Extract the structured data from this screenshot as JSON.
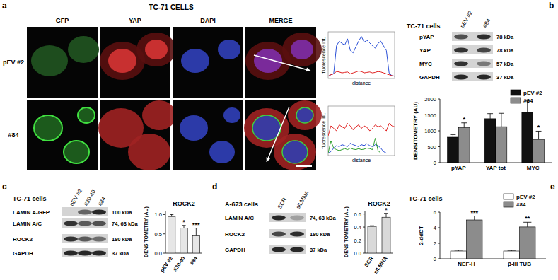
{
  "panel_labels": [
    "a",
    "b",
    "c",
    "d",
    "e"
  ],
  "micrographs": {
    "title": "TC-71 CELLS",
    "columns": [
      "GFP",
      "YAP",
      "DAPI",
      "MERGE"
    ],
    "rows": [
      "pEV #2",
      "#84"
    ]
  },
  "blots": [
    {
      "title": "TC-71 cells",
      "lanes": [
        "pEV #2",
        "#84"
      ],
      "bands": [
        {
          "label": "pYAP",
          "size": "78 kDa"
        },
        {
          "label": "YAP",
          "size": "78 kDa"
        },
        {
          "label": "MYC",
          "size": "57 kDa"
        },
        {
          "label": "GAPDH",
          "size": "37 kDa"
        }
      ]
    },
    {
      "title": "TC-71 cells",
      "lanes": [
        "pEV #2",
        "#30-40",
        "#84"
      ],
      "bands": [
        {
          "label": "LAMIN A-GFP",
          "size": "100 kDa"
        },
        {
          "label": "LAMIN A/C",
          "size": "74, 63 kDa"
        },
        {
          "label": "ROCK2",
          "size": "180 kDa"
        },
        {
          "label": "GAPDH",
          "size": "37 kDa"
        }
      ]
    },
    {
      "title": "A-673 cells",
      "lanes": [
        "SCR",
        "siLMNA"
      ],
      "bands": [
        {
          "label": "LAMIN A/C",
          "size": "74, 63 kDa"
        },
        {
          "label": "ROCK2",
          "size": "180 kDa"
        },
        {
          "label": "GAPDH",
          "size": "37 kDa"
        }
      ]
    }
  ],
  "chart_data": [
    {
      "type": "line",
      "xlabel": "distance",
      "ylabel": "fluorescence int.",
      "tick_labels": false,
      "x": [
        0,
        1,
        2,
        3,
        4,
        5,
        6,
        7,
        8,
        9,
        10,
        11,
        12,
        13,
        14,
        15,
        16,
        17,
        18,
        19,
        20,
        21,
        22,
        23,
        24
      ],
      "xlim": [
        0,
        24
      ],
      "ylim": [
        0,
        100
      ],
      "series": [
        {
          "color": "#2a4fd6",
          "values": [
            5,
            8,
            10,
            70,
            80,
            75,
            72,
            85,
            60,
            55,
            68,
            80,
            90,
            78,
            82,
            76,
            70,
            65,
            75,
            80,
            70,
            60,
            12,
            6,
            5
          ]
        },
        {
          "color": "#e02020",
          "values": [
            5,
            8,
            10,
            15,
            14,
            12,
            13,
            14,
            10,
            12,
            14,
            16,
            15,
            12,
            13,
            14,
            12,
            13,
            15,
            14,
            12,
            10,
            8,
            6,
            5
          ]
        }
      ]
    },
    {
      "type": "line",
      "xlabel": "distance",
      "ylabel": "fluorescence int.",
      "tick_labels": false,
      "x": [
        0,
        1,
        2,
        3,
        4,
        5,
        6,
        7,
        8,
        9,
        10,
        11,
        12,
        13,
        14,
        15,
        16,
        17,
        18,
        19,
        20,
        21,
        22,
        23,
        24
      ],
      "xlim": [
        0,
        24
      ],
      "ylim": [
        0,
        100
      ],
      "series": [
        {
          "color": "#e02020",
          "values": [
            40,
            60,
            55,
            50,
            62,
            58,
            55,
            65,
            60,
            52,
            58,
            62,
            55,
            60,
            57,
            50,
            55,
            62,
            58,
            60,
            55,
            50,
            65,
            60,
            58
          ]
        },
        {
          "color": "#2a4fd6",
          "values": [
            5,
            8,
            15,
            20,
            18,
            22,
            20,
            18,
            25,
            22,
            20,
            18,
            22,
            20,
            24,
            20,
            18,
            22,
            20,
            15,
            8,
            5,
            5,
            5,
            5
          ]
        },
        {
          "color": "#2ea02e",
          "values": [
            5,
            30,
            15,
            12,
            10,
            12,
            14,
            12,
            15,
            13,
            12,
            14,
            12,
            13,
            15,
            14,
            12,
            35,
            10,
            5,
            5,
            5,
            5,
            5,
            5
          ]
        }
      ]
    },
    {
      "type": "bar",
      "ylabel": "DENSITOMETRY (AU)",
      "legend": "top-right",
      "categories": [
        "pYAP",
        "YAP tot",
        "MYC"
      ],
      "ylim": [
        0,
        2000
      ],
      "yticks": [
        0,
        500,
        1000,
        1500,
        2000
      ],
      "series": [
        {
          "name": "pEV #2",
          "color": "#111111",
          "values": [
            800,
            1380,
            1580
          ],
          "errors": [
            80,
            160,
            360
          ],
          "annotations": [
            null,
            null,
            null
          ]
        },
        {
          "name": "#84",
          "color": "#8c8c8c",
          "values": [
            1100,
            1130,
            730
          ],
          "errors": [
            150,
            420,
            260
          ],
          "annotations": [
            "*",
            null,
            "*"
          ]
        }
      ]
    },
    {
      "type": "bar",
      "title": "ROCK2",
      "ylabel": "DENSITOMETRY (AU)",
      "categories": [
        "pEV #2",
        "#30-40",
        "#84"
      ],
      "ylim": [
        0,
        1.1
      ],
      "yticks": [
        {
          "value": 0,
          "label": "0.0"
        },
        {
          "value": 0.5,
          "label": "0.5"
        },
        {
          "value": 1,
          "label": "1.0"
        }
      ],
      "series": [
        {
          "color": "#e6e6e6",
          "values": [
            0.95,
            0.65,
            0.45
          ],
          "errors": [
            0.05,
            0.07,
            0.2
          ],
          "annotations": [
            null,
            "*",
            "***"
          ]
        }
      ]
    },
    {
      "type": "bar",
      "title": "ROCK2",
      "ylabel": "DENSITOMETRY (AU)",
      "categories": [
        "SCR",
        "siLMNA"
      ],
      "ylim": [
        0,
        0.65
      ],
      "yticks": [
        {
          "value": 0,
          "label": "0.0"
        },
        {
          "value": 0.2,
          "label": "0.2"
        },
        {
          "value": 0.4,
          "label": "0.4"
        },
        {
          "value": 0.6,
          "label": "0.6"
        }
      ],
      "series": [
        {
          "color": "#d9d9d9",
          "values": [
            0.41,
            0.55
          ],
          "errors": [
            0.01,
            0.06
          ],
          "annotations": [
            null,
            "*"
          ]
        }
      ]
    },
    {
      "type": "bar",
      "title": "TC-71 cells",
      "ylabel": "2-ddCT",
      "legend": "top-right",
      "categories": [
        "NEF-H",
        "β-III TUB"
      ],
      "ylim": [
        0,
        6
      ],
      "yticks": [
        0,
        2,
        4,
        6
      ],
      "series": [
        {
          "name": "pEV #2",
          "color": "#ffffff",
          "values": [
            1,
            1
          ],
          "errors": [
            0.1,
            0.08
          ],
          "annotations": [
            null,
            null
          ]
        },
        {
          "name": "#84",
          "color": "#8c8c8c",
          "values": [
            5,
            4.1
          ],
          "errors": [
            0.5,
            0.6
          ],
          "annotations": [
            "***",
            "**"
          ]
        }
      ]
    }
  ]
}
